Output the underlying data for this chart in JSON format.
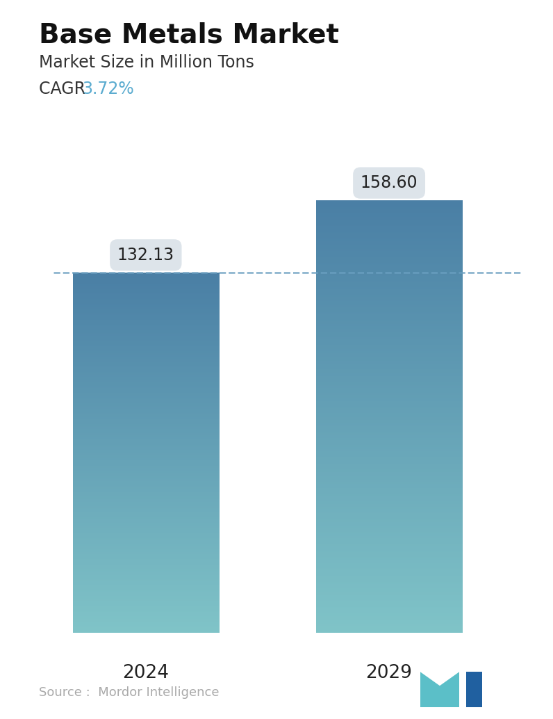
{
  "title": "Base Metals Market",
  "subtitle": "Market Size in Million Tons",
  "cagr_label": "CAGR ",
  "cagr_value": "3.72%",
  "cagr_color": "#5aabcf",
  "categories": [
    "2024",
    "2029"
  ],
  "values": [
    132.13,
    158.6
  ],
  "bar_color_top": "#4a7fa5",
  "bar_color_bottom": "#80c4c8",
  "dashed_line_value": 132.13,
  "dashed_line_color": "#6a9fc0",
  "background_color": "#ffffff",
  "source_text": "Source :  Mordor Intelligence",
  "source_color": "#aaaaaa",
  "title_fontsize": 28,
  "subtitle_fontsize": 17,
  "cagr_fontsize": 17,
  "xlabel_fontsize": 19,
  "value_label_fontsize": 17,
  "ylim": [
    0,
    190
  ],
  "tooltip_bg": "#dde4ea",
  "tooltip_text_color": "#222222",
  "bar_positions": [
    0.22,
    0.72
  ],
  "bar_width": 0.3
}
